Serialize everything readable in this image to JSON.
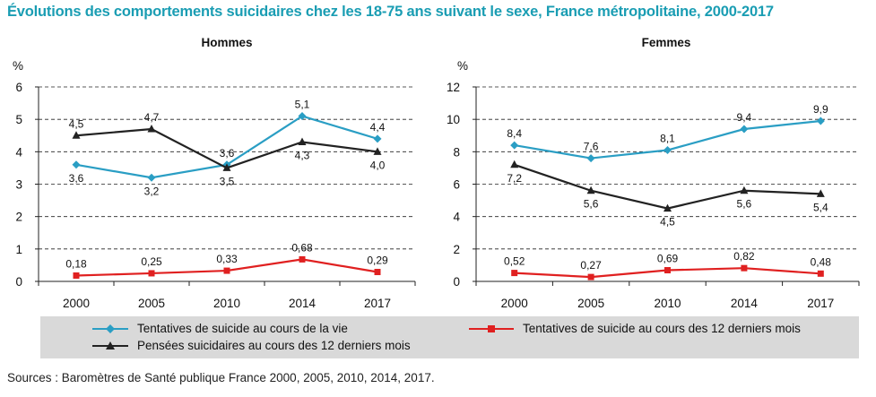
{
  "title": "Évolutions des comportements suicidaires chez les 18-75 ans suivant le sexe, France métropolitaine, 2000-2017",
  "source": "Sources : Baromètres de Santé publique France 2000, 2005, 2010, 2014, 2017.",
  "colors": {
    "tentatives_vie": "#2a9ec4",
    "tentatives_12m": "#e02020",
    "pensees_12m": "#222222",
    "title": "#1a9db3",
    "legend_bg": "#d9d9d9"
  },
  "legend": [
    {
      "label": "Tentatives de suicide au cours de la vie",
      "marker": "diamond",
      "color": "#2a9ec4"
    },
    {
      "label": "Tentatives de suicide au cours des 12 derniers mois",
      "marker": "square",
      "color": "#e02020"
    },
    {
      "label": "Pensées suicidaires au cours des 12 derniers mois",
      "marker": "triangle",
      "color": "#222222"
    }
  ],
  "chart_data": [
    {
      "type": "line",
      "title": "Hommes",
      "ylabel": "%",
      "ylim": [
        0,
        6
      ],
      "yticks": [
        0,
        1,
        2,
        3,
        4,
        5,
        6
      ],
      "grid": "horizontal dashed",
      "categories": [
        "2000",
        "2005",
        "2010",
        "2014",
        "2017"
      ],
      "series": [
        {
          "name": "Tentatives de suicide au cours de la vie",
          "values": [
            3.6,
            3.2,
            3.6,
            5.1,
            4.4
          ],
          "labels": [
            "3,6",
            "3,2",
            "3,6",
            "5,1",
            "4,4"
          ]
        },
        {
          "name": "Tentatives de suicide au cours des 12 derniers mois",
          "values": [
            0.18,
            0.25,
            0.33,
            0.68,
            0.29
          ],
          "labels": [
            "0,18",
            "0,25",
            "0,33",
            "0,68",
            "0,29"
          ]
        },
        {
          "name": "Pensées suicidaires au cours des 12 derniers mois",
          "values": [
            4.5,
            4.7,
            3.5,
            4.3,
            4.0
          ],
          "labels": [
            "4,5",
            "4,7",
            "3,5",
            "4,3",
            "4,0"
          ]
        }
      ]
    },
    {
      "type": "line",
      "title": "Femmes",
      "ylabel": "%",
      "ylim": [
        0,
        12
      ],
      "yticks": [
        0,
        2,
        4,
        6,
        8,
        10,
        12
      ],
      "grid": "horizontal dashed",
      "categories": [
        "2000",
        "2005",
        "2010",
        "2014",
        "2017"
      ],
      "series": [
        {
          "name": "Tentatives de suicide au cours de la vie",
          "values": [
            8.4,
            7.6,
            8.1,
            9.4,
            9.9
          ],
          "labels": [
            "8,4",
            "7,6",
            "8,1",
            "9,4",
            "9,9"
          ]
        },
        {
          "name": "Tentatives de suicide au cours des 12 derniers mois",
          "values": [
            0.52,
            0.27,
            0.69,
            0.82,
            0.48
          ],
          "labels": [
            "0,52",
            "0,27",
            "0,69",
            "0,82",
            "0,48"
          ]
        },
        {
          "name": "Pensées suicidaires au cours des 12 derniers mois",
          "values": [
            7.2,
            5.6,
            4.5,
            5.6,
            5.4
          ],
          "labels": [
            "7,2",
            "5,6",
            "4,5",
            "5,6",
            "5,4"
          ]
        }
      ]
    }
  ]
}
